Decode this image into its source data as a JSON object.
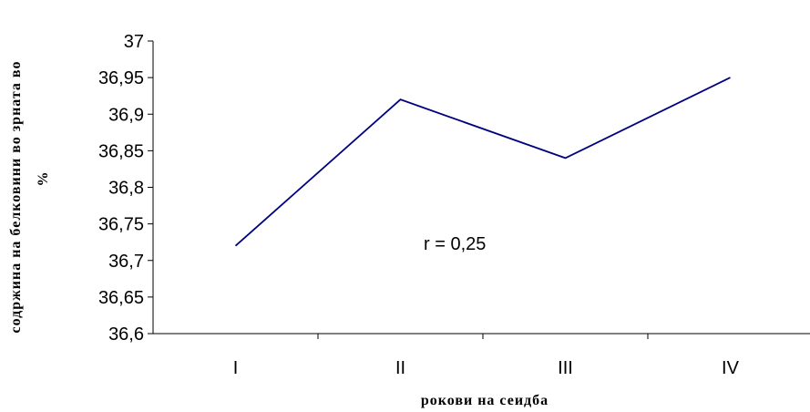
{
  "chart_data": {
    "type": "line",
    "categories": [
      "I",
      "II",
      "III",
      "IV"
    ],
    "series": [
      {
        "values": [
          36.72,
          36.92,
          36.84,
          36.95
        ]
      }
    ],
    "xlabel": "рокови на сеидба",
    "ylabel_lines": [
      "содржина на белковини во зрната во",
      "%"
    ],
    "ylim": [
      36.6,
      37
    ],
    "ystep": 0.05,
    "yticks": [
      "36,6",
      "36,65",
      "36,7",
      "36,75",
      "36,8",
      "36,85",
      "36,9",
      "36,95",
      "37"
    ],
    "annotation": "r = 0,25",
    "grid": false,
    "legend": "none",
    "line_color": "#000080"
  }
}
